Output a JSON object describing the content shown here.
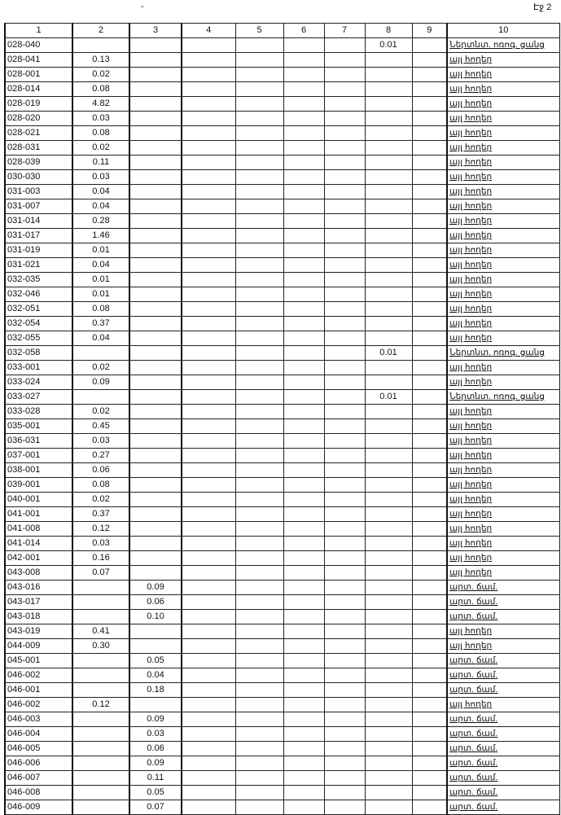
{
  "top_mark": "-",
  "page_label": "Էջ 2",
  "headers": [
    "1",
    "2",
    "3",
    "4",
    "5",
    "6",
    "7",
    "8",
    "9",
    "10"
  ],
  "rows": [
    [
      "028-040",
      "",
      "",
      "",
      "",
      "",
      "",
      "0.01",
      "",
      "Ներտնտ. ոռոգ. ցանց"
    ],
    [
      "028-041",
      "0.13",
      "",
      "",
      "",
      "",
      "",
      "",
      "",
      "այլ հողեր"
    ],
    [
      "028-001",
      "0.02",
      "",
      "",
      "",
      "",
      "",
      "",
      "",
      "այլ հողեր"
    ],
    [
      "028-014",
      "0.08",
      "",
      "",
      "",
      "",
      "",
      "",
      "",
      "այլ հողեր"
    ],
    [
      "028-019",
      "4.82",
      "",
      "",
      "",
      "",
      "",
      "",
      "",
      "այլ հողեր"
    ],
    [
      "028-020",
      "0.03",
      "",
      "",
      "",
      "",
      "",
      "",
      "",
      "այլ հողեր"
    ],
    [
      "028-021",
      "0.08",
      "",
      "",
      "",
      "",
      "",
      "",
      "",
      "այլ հողեր"
    ],
    [
      "028-031",
      "0.02",
      "",
      "",
      "",
      "",
      "",
      "",
      "",
      "այլ հողեր"
    ],
    [
      "028-039",
      "0.11",
      "",
      "",
      "",
      "",
      "",
      "",
      "",
      "այլ հողեր"
    ],
    [
      "030-030",
      "0.03",
      "",
      "",
      "",
      "",
      "",
      "",
      "",
      "այլ հողեր"
    ],
    [
      "031-003",
      "0.04",
      "",
      "",
      "",
      "",
      "",
      "",
      "",
      "այլ հողեր"
    ],
    [
      "031-007",
      "0.04",
      "",
      "",
      "",
      "",
      "",
      "",
      "",
      "այլ հողեր"
    ],
    [
      "031-014",
      "0.28",
      "",
      "",
      "",
      "",
      "",
      "",
      "",
      "այլ հողեր"
    ],
    [
      "031-017",
      "1.46",
      "",
      "",
      "",
      "",
      "",
      "",
      "",
      "այլ հողեր"
    ],
    [
      "031-019",
      "0.01",
      "",
      "",
      "",
      "",
      "",
      "",
      "",
      "այլ հողեր"
    ],
    [
      "031-021",
      "0.04",
      "",
      "",
      "",
      "",
      "",
      "",
      "",
      "այլ հողեր"
    ],
    [
      "032-035",
      "0.01",
      "",
      "",
      "",
      "",
      "",
      "",
      "",
      "այլ հողեր"
    ],
    [
      "032-046",
      "0.01",
      "",
      "",
      "",
      "",
      "",
      "",
      "",
      "այլ հողեր"
    ],
    [
      "032-051",
      "0.08",
      "",
      "",
      "",
      "",
      "",
      "",
      "",
      "այլ հողեր"
    ],
    [
      "032-054",
      "0.37",
      "",
      "",
      "",
      "",
      "",
      "",
      "",
      "այլ հողեր"
    ],
    [
      "032-055",
      "0.04",
      "",
      "",
      "",
      "",
      "",
      "",
      "",
      "այլ հողեր"
    ],
    [
      "032-058",
      "",
      "",
      "",
      "",
      "",
      "",
      "0.01",
      "",
      "Ներտնտ. ոռոգ. ցանց"
    ],
    [
      "033-001",
      "0.02",
      "",
      "",
      "",
      "",
      "",
      "",
      "",
      "այլ հողեր"
    ],
    [
      "033-024",
      "0.09",
      "",
      "",
      "",
      "",
      "",
      "",
      "",
      "այլ հողեր"
    ],
    [
      "033-027",
      "",
      "",
      "",
      "",
      "",
      "",
      "0.01",
      "",
      "Ներտնտ. ոռոգ. ցանց"
    ],
    [
      "033-028",
      "0.02",
      "",
      "",
      "",
      "",
      "",
      "",
      "",
      "այլ հողեր"
    ],
    [
      "035-001",
      "0.45",
      "",
      "",
      "",
      "",
      "",
      "",
      "",
      "այլ հողեր"
    ],
    [
      "036-031",
      "0.03",
      "",
      "",
      "",
      "",
      "",
      "",
      "",
      "այլ հողեր"
    ],
    [
      "037-001",
      "0.27",
      "",
      "",
      "",
      "",
      "",
      "",
      "",
      "այլ հողեր"
    ],
    [
      "038-001",
      "0.06",
      "",
      "",
      "",
      "",
      "",
      "",
      "",
      "այլ հողեր"
    ],
    [
      "039-001",
      "0.08",
      "",
      "",
      "",
      "",
      "",
      "",
      "",
      "այլ հողեր"
    ],
    [
      "040-001",
      "0.02",
      "",
      "",
      "",
      "",
      "",
      "",
      "",
      "այլ հողեր"
    ],
    [
      "041-001",
      "0.37",
      "",
      "",
      "",
      "",
      "",
      "",
      "",
      "այլ հողեր"
    ],
    [
      "041-008",
      "0.12",
      "",
      "",
      "",
      "",
      "",
      "",
      "",
      "այլ հողեր"
    ],
    [
      "041-014",
      "0.03",
      "",
      "",
      "",
      "",
      "",
      "",
      "",
      "այլ հողեր"
    ],
    [
      "042-001",
      "0.16",
      "",
      "",
      "",
      "",
      "",
      "",
      "",
      "այլ հողեր"
    ],
    [
      "043-008",
      "0.07",
      "",
      "",
      "",
      "",
      "",
      "",
      "",
      "այլ հողեր"
    ],
    [
      "043-016",
      "",
      "0.09",
      "",
      "",
      "",
      "",
      "",
      "",
      "արտ. ճամ."
    ],
    [
      "043-017",
      "",
      "0.06",
      "",
      "",
      "",
      "",
      "",
      "",
      "արտ. ճամ."
    ],
    [
      "043-018",
      "",
      "0.10",
      "",
      "",
      "",
      "",
      "",
      "",
      "արտ. ճամ."
    ],
    [
      "043-019",
      "0.41",
      "",
      "",
      "",
      "",
      "",
      "",
      "",
      "այլ հողեր"
    ],
    [
      "044-009",
      "0.30",
      "",
      "",
      "",
      "",
      "",
      "",
      "",
      "այլ հողեր"
    ],
    [
      "045-001",
      "",
      "0.05",
      "",
      "",
      "",
      "",
      "",
      "",
      "արտ. ճամ."
    ],
    [
      "046-002",
      "",
      "0.04",
      "",
      "",
      "",
      "",
      "",
      "",
      "արտ. ճամ."
    ],
    [
      "046-001",
      "",
      "0.18",
      "",
      "",
      "",
      "",
      "",
      "",
      "արտ. ճամ."
    ],
    [
      "046-002",
      "0.12",
      "",
      "",
      "",
      "",
      "",
      "",
      "",
      "այլ հողեր"
    ],
    [
      "046-003",
      "",
      "0.09",
      "",
      "",
      "",
      "",
      "",
      "",
      "արտ. ճամ."
    ],
    [
      "046-004",
      "",
      "0.03",
      "",
      "",
      "",
      "",
      "",
      "",
      "արտ. ճամ."
    ],
    [
      "046-005",
      "",
      "0.06",
      "",
      "",
      "",
      "",
      "",
      "",
      "արտ. ճամ."
    ],
    [
      "046-006",
      "",
      "0.09",
      "",
      "",
      "",
      "",
      "",
      "",
      "արտ. ճամ."
    ],
    [
      "046-007",
      "",
      "0.11",
      "",
      "",
      "",
      "",
      "",
      "",
      "արտ. ճամ."
    ],
    [
      "046-008",
      "",
      "0.05",
      "",
      "",
      "",
      "",
      "",
      "",
      "արտ. ճամ."
    ],
    [
      "046-009",
      "",
      "0.07",
      "",
      "",
      "",
      "",
      "",
      "",
      "արտ. ճամ."
    ]
  ]
}
